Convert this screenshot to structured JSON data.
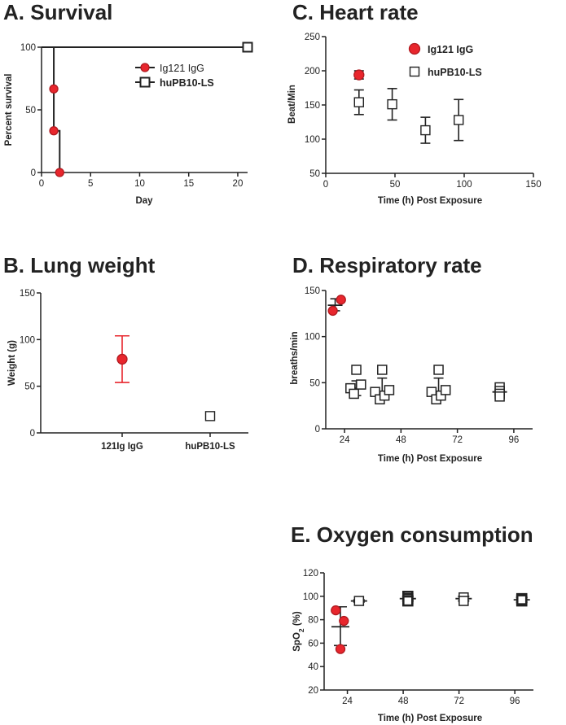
{
  "chart_data": [
    {
      "id": "A",
      "type": "line",
      "title": "A. Survival",
      "xlabel": "Day",
      "ylabel": "Percent survival",
      "xlim": [
        0,
        21
      ],
      "ylim": [
        0,
        100
      ],
      "xticks": [
        0,
        5,
        10,
        15,
        20
      ],
      "yticks": [
        0,
        50,
        100
      ],
      "series": [
        {
          "name": "Ig121 IgG",
          "color": "#e8262d",
          "marker": "filled-circle",
          "steps": [
            [
              0,
              100
            ],
            [
              1.25,
              100
            ],
            [
              1.25,
              66.7
            ],
            [
              1.25,
              33.3
            ],
            [
              1.85,
              33.3
            ],
            [
              1.85,
              0
            ]
          ],
          "points": [
            [
              1.25,
              66.7
            ],
            [
              1.25,
              33.3
            ],
            [
              1.85,
              0
            ]
          ]
        },
        {
          "name": "huPB10-LS",
          "color": "#222222",
          "marker": "open-square",
          "steps": [
            [
              0,
              100
            ],
            [
              21,
              100
            ]
          ],
          "points": [
            [
              21,
              100
            ]
          ]
        }
      ],
      "legend": [
        {
          "label": "Ig121 IgG",
          "bold": false
        },
        {
          "label": "huPB10-LS",
          "bold": true
        }
      ]
    },
    {
      "id": "B",
      "type": "scatter",
      "title": "B. Lung weight",
      "xlabel": "",
      "ylabel": "Weight (g)",
      "ylim": [
        0,
        150
      ],
      "yticks": [
        0,
        50,
        100,
        150
      ],
      "categories": [
        "121Ig IgG",
        "huPB10-LS"
      ],
      "series": [
        {
          "name": "121Ig IgG",
          "category": 0,
          "mean": 79,
          "err_low": 54,
          "err_high": 104,
          "marker": "filled-circle",
          "fill": "#e8262d",
          "err_color": "#e8262d"
        },
        {
          "name": "huPB10-LS",
          "category": 1,
          "mean": 18,
          "err_low": 15.5,
          "err_high": 20.5,
          "marker": "open-square",
          "fill": "#ffffff",
          "err_color": "#222222"
        }
      ]
    },
    {
      "id": "C",
      "type": "scatter",
      "title": "C. Heart rate",
      "xlabel": "Time (h) Post Exposure",
      "ylabel": "Beat/Min",
      "xlim": [
        0,
        150
      ],
      "ylim": [
        50,
        250
      ],
      "xticks": [
        0,
        50,
        100,
        150
      ],
      "yticks": [
        50,
        100,
        150,
        200,
        250
      ],
      "series": [
        {
          "name": "Ig121 IgG",
          "marker": "filled-circle",
          "fill": "#e8262d",
          "points": [
            {
              "x": 24,
              "y": 194,
              "lo": 188,
              "hi": 200
            }
          ]
        },
        {
          "name": "huPB10-LS",
          "marker": "open-square",
          "fill": "#ffffff",
          "points": [
            {
              "x": 24,
              "y": 154,
              "lo": 136,
              "hi": 172
            },
            {
              "x": 48,
              "y": 151,
              "lo": 128,
              "hi": 174
            },
            {
              "x": 72,
              "y": 113,
              "lo": 94,
              "hi": 132
            },
            {
              "x": 96,
              "y": 128,
              "lo": 98,
              "hi": 158
            }
          ]
        }
      ],
      "legend": [
        {
          "label": "Ig121 IgG",
          "bold": true
        },
        {
          "label": "huPB10-LS",
          "bold": true
        }
      ]
    },
    {
      "id": "D",
      "type": "scatter",
      "title": "D. Respiratory rate",
      "xlabel": "Time (h) Post Exposure",
      "ylabel": "breaths/min",
      "xlim": [
        16,
        104
      ],
      "ylim": [
        0,
        150
      ],
      "xticks": [
        24,
        48,
        72,
        96
      ],
      "yticks": [
        0,
        50,
        100,
        150
      ],
      "groups": [
        {
          "x": 20,
          "mean": 134,
          "lo": 128,
          "hi": 141,
          "type": "red",
          "points": [
            [
              19,
              128
            ],
            [
              22.5,
              140
            ]
          ]
        },
        {
          "x": 29,
          "mean": 44,
          "lo": 36,
          "hi": 52,
          "type": "open",
          "points": [
            [
              26.5,
              44
            ],
            [
              28,
              38
            ],
            [
              29,
              64
            ],
            [
              31,
              48
            ]
          ]
        },
        {
          "x": 40,
          "mean": 40,
          "lo": 33,
          "hi": 55,
          "type": "open",
          "points": [
            [
              37,
              40
            ],
            [
              39,
              32
            ],
            [
              40,
              64
            ],
            [
              41,
              36
            ],
            [
              43,
              42
            ]
          ]
        },
        {
          "x": 64,
          "mean": 40,
          "lo": 32,
          "hi": 55,
          "type": "open",
          "points": [
            [
              61,
              40
            ],
            [
              63,
              32
            ],
            [
              64,
              64
            ],
            [
              65,
              36
            ],
            [
              67,
              42
            ]
          ]
        },
        {
          "x": 90,
          "mean": 40,
          "lo": 36,
          "hi": 45,
          "type": "open",
          "points": [
            [
              90,
              45
            ],
            [
              90,
              41
            ],
            [
              90,
              38
            ],
            [
              90,
              35
            ]
          ]
        }
      ]
    },
    {
      "id": "E",
      "type": "scatter",
      "title": "E. Oxygen consumption",
      "xlabel": "Time (h) Post Exposure",
      "ylabel_main": "SpO",
      "ylabel_sub": "2",
      "ylabel_tail": " (%)",
      "xlim": [
        14,
        104
      ],
      "ylim": [
        20,
        120
      ],
      "xticks": [
        24,
        48,
        72,
        96
      ],
      "yticks": [
        20,
        40,
        60,
        80,
        100,
        120
      ],
      "groups": [
        {
          "x": 21,
          "mean": 74,
          "lo": 58,
          "hi": 91,
          "type": "red",
          "points": [
            [
              19,
              88
            ],
            [
              22.5,
              79
            ],
            [
              21,
              55
            ]
          ]
        },
        {
          "x": 29,
          "mean": 96,
          "lo": 95,
          "hi": 97,
          "type": "open",
          "points": [
            [
              29,
              96
            ]
          ]
        },
        {
          "x": 50,
          "mean": 98,
          "lo": 96,
          "hi": 100,
          "type": "bold",
          "points": [
            [
              50,
              100
            ],
            [
              50,
              98
            ],
            [
              50,
              96
            ]
          ]
        },
        {
          "x": 74,
          "mean": 98,
          "lo": 96,
          "hi": 100,
          "type": "open",
          "points": [
            [
              74,
              99
            ],
            [
              74,
              96
            ]
          ]
        },
        {
          "x": 99,
          "mean": 97,
          "lo": 95,
          "hi": 99,
          "type": "bold",
          "points": [
            [
              99,
              98
            ],
            [
              99,
              96
            ],
            [
              99,
              97
            ]
          ]
        }
      ]
    }
  ]
}
